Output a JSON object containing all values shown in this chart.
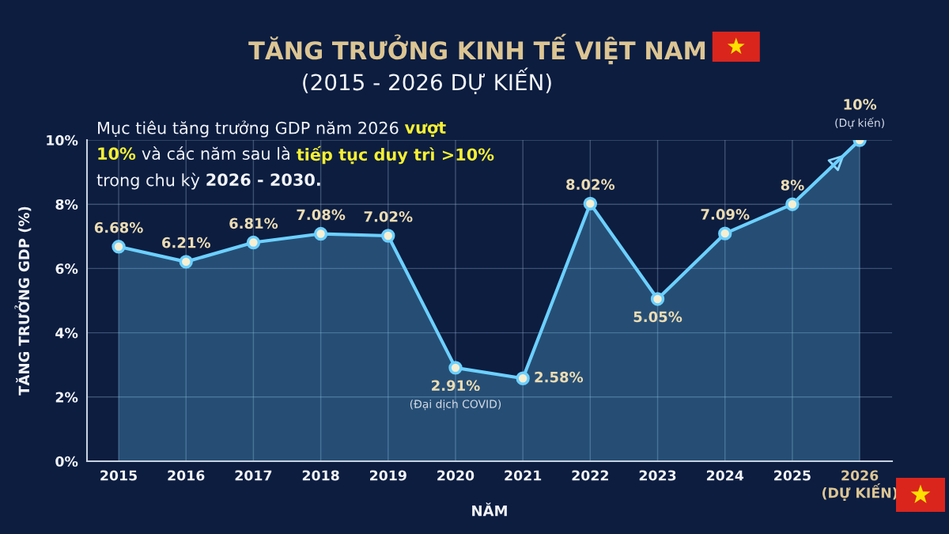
{
  "chart_data": {
    "type": "area",
    "title": "TĂNG TRƯỞNG KINH TẾ VIỆT NAM",
    "subtitle": "(2015 - 2026 DỰ KIẾN)",
    "xlabel": "NĂM",
    "ylabel": "TĂNG TRƯỞNG GDP (%)",
    "categories": [
      "2015",
      "2016",
      "2017",
      "2018",
      "2019",
      "2020",
      "2021",
      "2022",
      "2023",
      "2024",
      "2025",
      "2026\n(DỰ KIẾN)"
    ],
    "series": [
      {
        "color": "#6cd0ff",
        "values": [
          6.68,
          6.21,
          6.81,
          7.08,
          7.02,
          2.91,
          2.58,
          8.02,
          5.05,
          7.09,
          8,
          10
        ],
        "value_labels": [
          "6.68%",
          "6.21%",
          "6.81%",
          "7.08%",
          "7.02%",
          "2.91%",
          "2.58%",
          "8.02%",
          "5.05%",
          "7.09%",
          "8%",
          "10%"
        ]
      }
    ],
    "ylim": [
      0,
      10
    ],
    "yticks": [
      {
        "value": 0,
        "label": "0%"
      },
      {
        "value": 2,
        "label": "2%"
      },
      {
        "value": 4,
        "label": "4%"
      },
      {
        "value": 6,
        "label": "6%"
      },
      {
        "value": 8,
        "label": "8%"
      },
      {
        "value": 10,
        "label": "10%"
      }
    ],
    "grid": true,
    "marker": "circle",
    "line_style": "solid",
    "annotations": [
      "Mục tiêu tăng trưởng GDP năm 2026",
      "vượt",
      "10%",
      "và các năm sau là",
      "tiếp tục duy trì >10%",
      "trong chu kỳ",
      "2026 - 2030.",
      {
        "text": "(Đại dịch COVID)",
        "x": "2020",
        "y": 2.91
      },
      {
        "text": "(Dự kiến)",
        "x": "2026\n(DỰ KIẾN)",
        "y": 10
      }
    ]
  }
}
